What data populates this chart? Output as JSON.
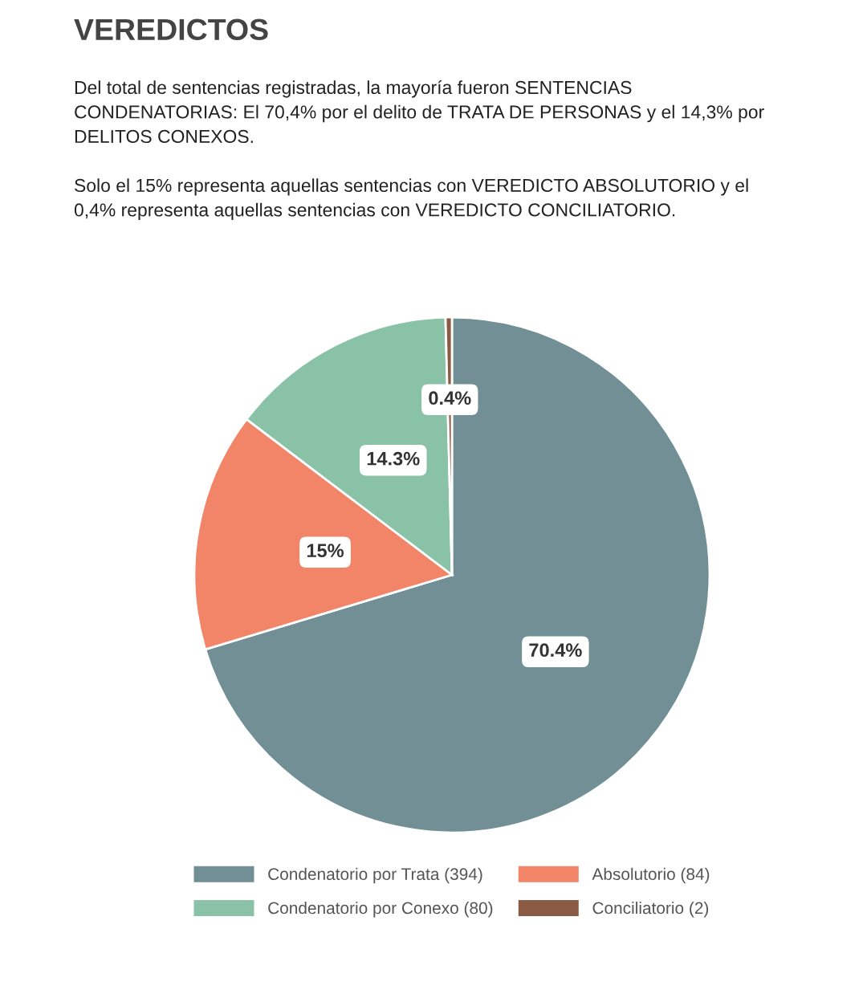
{
  "chart_data": {
    "type": "pie",
    "title": "VEREDICTOS",
    "subtitle": "Del total de sentencias registradas, la mayoría fueron SENTENCIAS\nCONDENATORIAS: El 70,4% por el delito de TRATA DE PERSONAS y el 14,3% por\nDELITOS CONEXOS.\n\nSolo el 15% representa aquellas sentencias con VEREDICTO ABSOLUTORIO y el\n0,4% representa aquellas sentencias con VEREDICTO CONCILIATORIO.",
    "categories": [
      "Condenatorio por Trata (394)",
      "Absolutorio (84)",
      "Condenatorio por Conexo (80)",
      "Conciliatorio (2)"
    ],
    "values": [
      70.4,
      15,
      14.3,
      0.4
    ],
    "value_labels": [
      "70.4%",
      "15%",
      "14.3%",
      "0.4%"
    ],
    "colors": [
      "#718f94",
      "#f28468",
      "#89c2a7",
      "#8b5a43"
    ],
    "legend": "bottom"
  }
}
